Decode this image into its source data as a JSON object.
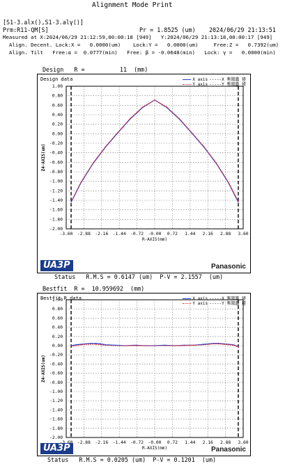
{
  "header": {
    "title": "Alignment Mode Print",
    "files": "[S1-3.alx(),S1-3.alγ()]",
    "prm": "Prm:R11-QM[S]",
    "pr": "Pr = 1.8525 (um)",
    "print_time": "2024/06/29 21:13:51",
    "measured": "Measured at X:2024/06/29 21:12:59,00:00:18 [949]   Y:2024/06/29 21:13:18,00:00:17 [949]",
    "decent": "Align. Decent. Lock:X =   0.0000(um)    Lock:Y =   0.0000(um)     Free:Z =   0.7392(um)",
    "tilt": "Align. Tilt   Free:α =  0.0777(min)   Free: β = -0.0648(min)   Lock: γ =   0.0000(min)"
  },
  "colors": {
    "x_axis": "#1c3fd6",
    "y_axis": "#e0262b",
    "logo_bg": "#1b3b8c"
  },
  "panels": [
    {
      "caption": "Design   R =          11  (mm)",
      "title": "Design data",
      "status": "Status   R.M.S = 0.6147 (um)  P-V = 2.1557  (um)",
      "logo_left": "UA3P",
      "logo_right": "Panasonic"
    },
    {
      "caption": "Bestfit  R =  10.959692  (mm)",
      "title": "Bestfit R data",
      "status": "Status   R.M.S = 0.0205 (um)  P-V = 0.1201  (um)",
      "logo_left": "UA3P",
      "logo_right": "Panasonic"
    }
  ],
  "legend": {
    "x_label": "X axis",
    "y_label": "Y axis",
    "x_marks": "-----X 有效直 径",
    "y_marks": "-----Y 有效直 径"
  },
  "chart_data": [
    {
      "type": "line",
      "title": "Design data",
      "xlabel": "R-AXIS(mm)",
      "ylabel": "Z4-AXIS(um)",
      "xlim": [
        -3.6,
        3.6
      ],
      "ylim": [
        -2.0,
        1.0
      ],
      "xticks": [
        "-3.60",
        "-2.88",
        "-2.16",
        "-1.44",
        "-0.72",
        "-0.00",
        "0.72",
        "1.44",
        "2.16",
        "2.88",
        "3.60"
      ],
      "yticks": [
        "1.00",
        "0.80",
        "0.60",
        "0.40",
        "0.20",
        "0.00",
        "-0.20",
        "-0.40",
        "-0.60",
        "-0.80",
        "-1.00",
        "-1.20",
        "-1.40",
        "-1.60",
        "-1.80",
        "-2.00"
      ],
      "grid": true,
      "legend_position": "top-right",
      "effective_diameter_marks": [
        -3.4,
        3.4
      ],
      "series": [
        {
          "name": "X axis",
          "color": "#1c3fd6",
          "x": [
            -3.4,
            -3.0,
            -2.5,
            -2.0,
            -1.5,
            -1.0,
            -0.5,
            0.0,
            0.5,
            1.0,
            1.5,
            2.0,
            2.5,
            3.0,
            3.4
          ],
          "y": [
            -1.44,
            -1.03,
            -0.62,
            -0.28,
            0.02,
            0.31,
            0.55,
            0.71,
            0.55,
            0.31,
            0.02,
            -0.28,
            -0.62,
            -1.03,
            -1.44
          ]
        },
        {
          "name": "Y axis",
          "color": "#e0262b",
          "x": [
            -3.4,
            -3.0,
            -2.5,
            -2.0,
            -1.5,
            -1.0,
            -0.5,
            0.0,
            0.5,
            1.0,
            1.5,
            2.0,
            2.5,
            3.0,
            3.4
          ],
          "y": [
            -1.43,
            -1.02,
            -0.61,
            -0.27,
            0.03,
            0.32,
            0.56,
            0.71,
            0.56,
            0.32,
            0.03,
            -0.27,
            -0.61,
            -1.02,
            -1.42
          ]
        }
      ]
    },
    {
      "type": "line",
      "title": "Bestfit R data",
      "xlabel": "R-AXIS(mm)",
      "ylabel": "Z4-AXIS(um)",
      "xlim": [
        -3.6,
        3.6
      ],
      "ylim": [
        -2.0,
        1.0
      ],
      "xticks": [
        "-3.60",
        "-2.88",
        "-2.16",
        "-1.44",
        "-0.72",
        "-0.00",
        "0.72",
        "1.44",
        "2.16",
        "2.88",
        "3.60"
      ],
      "yticks": [
        "1.00",
        "0.80",
        "0.60",
        "0.40",
        "0.20",
        "0.00",
        "-0.20",
        "-0.40",
        "-0.60",
        "-0.80",
        "-1.00",
        "-1.20",
        "-1.40",
        "-1.60",
        "-1.80",
        "-2.00"
      ],
      "grid": true,
      "legend_position": "top-right",
      "effective_diameter_marks": [
        -3.4,
        3.4
      ],
      "series": [
        {
          "name": "X axis",
          "color": "#1c3fd6",
          "x": [
            -3.4,
            -3.2,
            -3.0,
            -2.8,
            -2.6,
            -2.4,
            -2.2,
            -2.0,
            -1.6,
            -1.2,
            -0.8,
            -0.4,
            0.0,
            0.4,
            0.8,
            1.2,
            1.6,
            2.0,
            2.2,
            2.4,
            2.6,
            2.8,
            3.0,
            3.2,
            3.4
          ],
          "y": [
            0.0,
            0.02,
            0.03,
            0.04,
            0.05,
            0.05,
            0.04,
            0.02,
            0.01,
            0.0,
            0.01,
            0.0,
            0.0,
            0.01,
            0.0,
            0.01,
            0.01,
            0.03,
            0.04,
            0.05,
            0.05,
            0.04,
            0.03,
            0.02,
            -0.02
          ]
        },
        {
          "name": "Y axis",
          "color": "#e0262b",
          "x": [
            -3.4,
            -3.2,
            -3.0,
            -2.8,
            -2.6,
            -2.4,
            -2.2,
            -2.0,
            -1.6,
            -1.2,
            -0.8,
            -0.4,
            0.0,
            0.4,
            0.8,
            1.2,
            1.6,
            2.0,
            2.2,
            2.4,
            2.6,
            2.8,
            3.0,
            3.2,
            3.4
          ],
          "y": [
            -0.01,
            0.0,
            0.02,
            0.03,
            0.03,
            0.03,
            0.02,
            0.01,
            0.0,
            0.0,
            0.0,
            0.0,
            0.0,
            0.0,
            0.0,
            0.0,
            0.01,
            0.02,
            0.03,
            0.04,
            0.04,
            0.03,
            0.02,
            0.01,
            -0.03
          ]
        }
      ]
    }
  ]
}
